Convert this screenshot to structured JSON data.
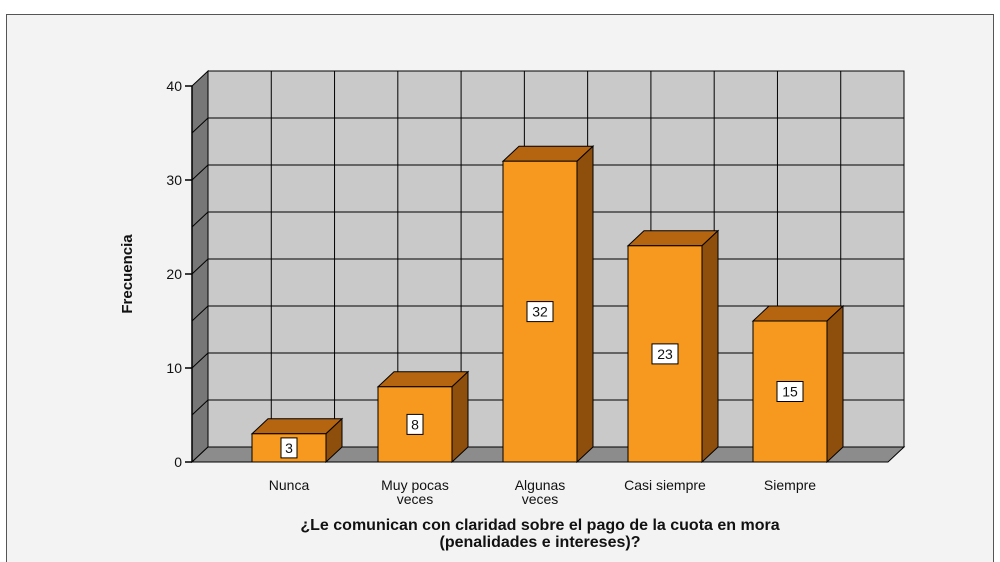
{
  "chart_data": {
    "type": "bar",
    "categories": [
      [
        "Nunca"
      ],
      [
        "Muy pocas",
        "veces"
      ],
      [
        "Algunas",
        "veces"
      ],
      [
        "Casi siempre"
      ],
      [
        "Siempre"
      ]
    ],
    "values": [
      3,
      8,
      32,
      23,
      15
    ],
    "data_labels": [
      "3",
      "8",
      "32",
      "23",
      "15"
    ],
    "ylabel": "Frecuencia",
    "xlabel": [
      "¿Le comunican con claridad sobre el pago de la cuota en mora",
      "(penalidades e intereses)?"
    ],
    "ylim": [
      0,
      40
    ],
    "yticks": [
      "0",
      "10",
      "20",
      "30",
      "40"
    ],
    "grid": true,
    "style": "3d",
    "colors": {
      "bar_front": "#F7991E",
      "bar_top": "#B5640F",
      "bar_side": "#8E4E0C",
      "plot_back": "#C9C9C9",
      "floor": "#8C8C8C",
      "wall_side": "#777777"
    }
  }
}
